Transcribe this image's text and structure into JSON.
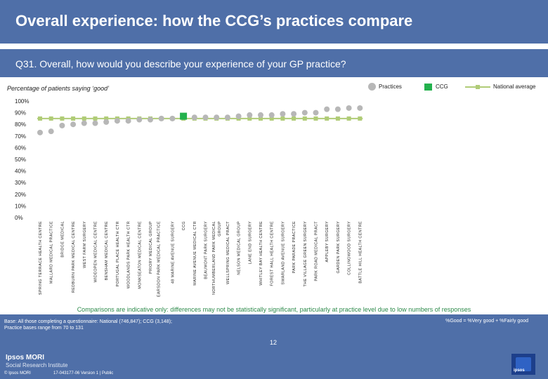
{
  "title": "Overall experience: how the CCG’s practices compare",
  "question": "Q31. Overall, how would you describe your experience of your GP practice?",
  "subtitle": "Percentage of patients saying ‘good’",
  "legend": {
    "practices": "Practices",
    "ccg": "CCG",
    "national": "National average"
  },
  "colors": {
    "header": "#4f6fa8",
    "practice": "#b7b7b7",
    "ccg": "#23b14d",
    "national": "#b0cc77",
    "footnote": "#2c8a4a"
  },
  "chart_data": {
    "type": "scatter",
    "title": "Percentage of patients saying ‘good’",
    "ylim": [
      0,
      100
    ],
    "yticks": [
      "0%",
      "10%",
      "20%",
      "30%",
      "40%",
      "50%",
      "60%",
      "70%",
      "80%",
      "90%",
      "100%"
    ],
    "grid": false,
    "national_average": 85,
    "categories": [
      "SPRING TERRACE HEALTH CENTRE",
      "MALLARD MEDICAL PRACTICE",
      "BRIDGE MEDICAL",
      "REDBURN PARK MEDICAL CENTRE",
      "WEST FARM SURGERY",
      "WIDEOPEN MEDICAL CENTRE",
      "BENSHAM MEDICAL CENTRE",
      "PORTUGAL PLACE HEALTH CTR",
      "WOODLANDS PARK HEALTH CTR",
      "MONKSEATON MEDICAL CENTRE",
      "PRIORY MEDICAL GROUP",
      "EARSDON PARK MEDICAL PRACTICE",
      "48 MARINE AVENUE SURGERY",
      "CCG",
      "MARINE AVENUE MEDICAL CTR",
      "BEAUMONT PARK SURGERY",
      "NORTHUMBERLAND PARK MEDICAL GROUP",
      "WELLSPRING MEDICAL PRACT",
      "NELSON MEDICAL GROUP",
      "LANE END SURGERY",
      "WHITLEY BAY HEALTH CENTRE",
      "FOREST HALL HEALTH CENTRE",
      "SWARLAND AVENUE SURGERY",
      "PARK PARADE PRACTICE",
      "THE VILLAGE GREEN SURGERY",
      "PARK ROAD MEDICAL PRACT",
      "APPLEBY SURGERY",
      "GARDEN PARK SURGERY",
      "COLLINGWOOD SURGERY",
      "BATTLE HILL HEALTH CENTRE"
    ],
    "series": [
      {
        "name": "Practices / CCG",
        "values": [
          73,
          74,
          79,
          80,
          81,
          81,
          82,
          83,
          83,
          84,
          84,
          85,
          85,
          87,
          86,
          86,
          86,
          86,
          87,
          88,
          88,
          88,
          89,
          89,
          90,
          90,
          93,
          93,
          94,
          94
        ]
      }
    ],
    "ccg_index": 13
  },
  "footnote": "Comparisons are indicative only: differences may not be statistically significant, particularly at practice level due to low numbers of responses",
  "base_line1": "Base: All those completing a questionnaire: National (746,847); CCG (3,148);",
  "base_line2": "Practice bases range from 70 to 131",
  "good_definition": "%Good = %Very good + %Fairly good",
  "page_number": "12",
  "brand_line1": "Ipsos MORI",
  "brand_line2": "Social Research Institute",
  "copyright": "© Ipsos MORI",
  "reference": "17-043177-06 Version 1 | Public",
  "logo_text": "ipsos"
}
